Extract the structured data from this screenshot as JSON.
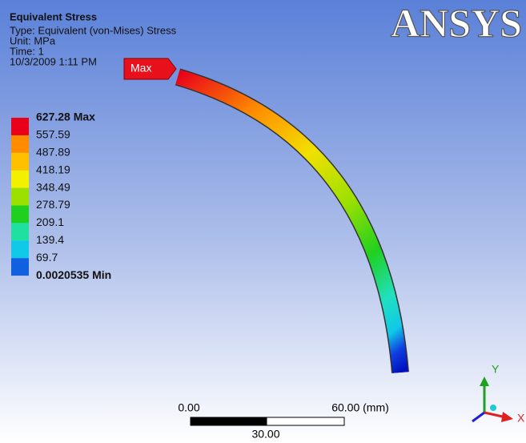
{
  "header": {
    "title": "Equivalent Stress",
    "lines": [
      "Type: Equivalent (von-Mises) Stress",
      "Unit: MPa",
      "Time: 1",
      "10/3/2009 1:11 PM"
    ]
  },
  "logo": "ANSYS",
  "max_tag": "Max",
  "legend": {
    "labels": [
      "627.28 Max",
      "557.59",
      "487.89",
      "418.19",
      "348.49",
      "278.79",
      "209.1",
      "139.4",
      "69.7",
      "0.0020535 Min"
    ],
    "colors": [
      "#e8001a",
      "#ff8c00",
      "#ffc000",
      "#f2f200",
      "#9be000",
      "#20d020",
      "#20e0a0",
      "#10c8e8",
      "#1060e0"
    ]
  },
  "scale_bar": {
    "left": "0.00",
    "right": "60.00 (mm)",
    "middle": "30.00"
  },
  "triad": {
    "y": "Y",
    "x": "X"
  }
}
